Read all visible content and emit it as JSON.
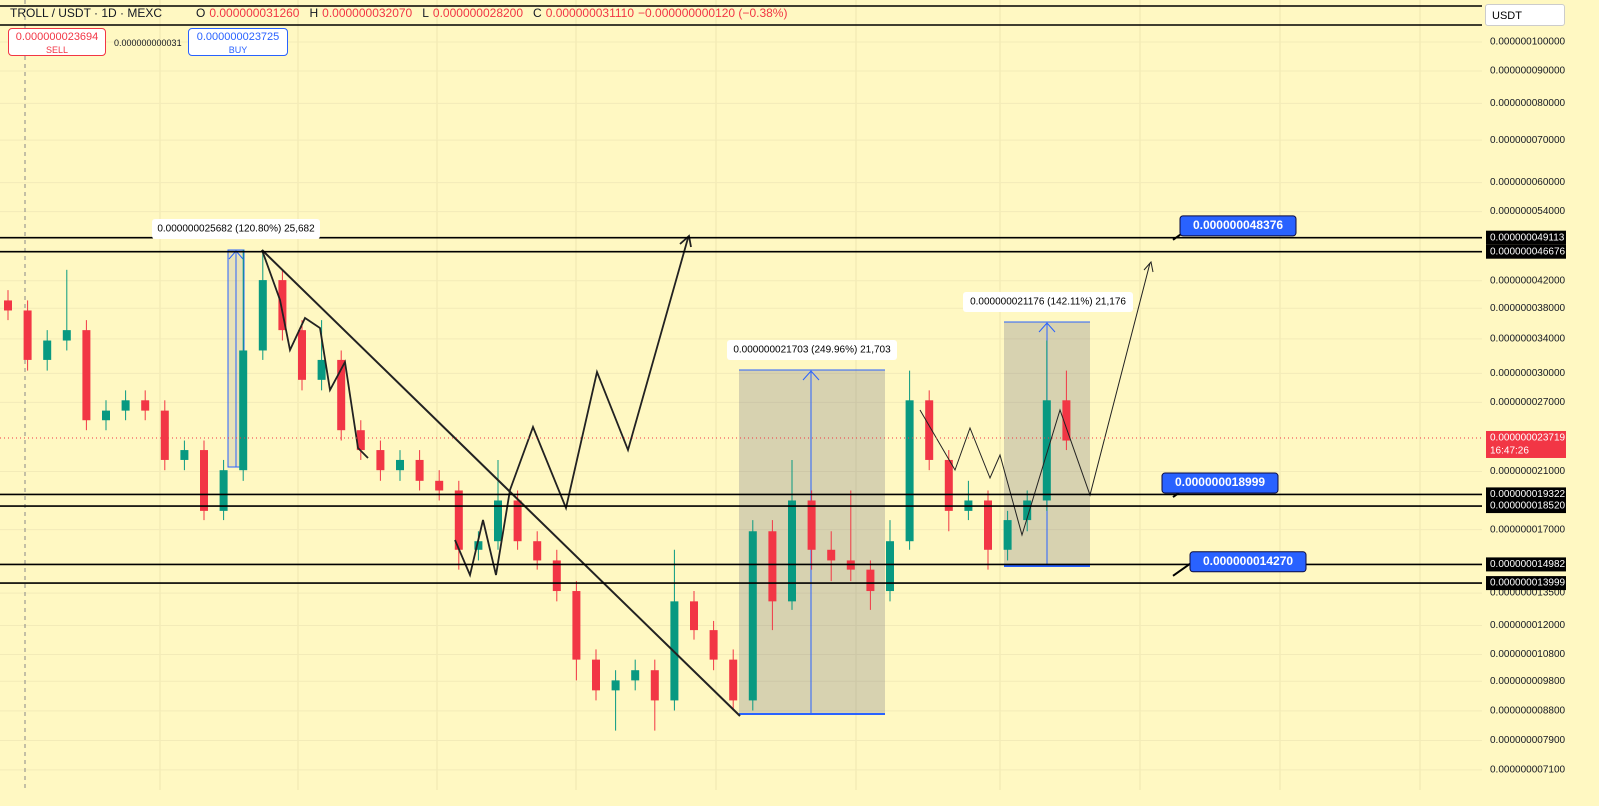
{
  "header": {
    "symbol": "TROLL / USDT · 1D · MEXC",
    "ohlc": [
      {
        "key": "O",
        "value": "0.000000031260"
      },
      {
        "key": "H",
        "value": "0.000000032070"
      },
      {
        "key": "L",
        "value": "0.000000028200"
      },
      {
        "key": "C",
        "value": "0.000000031110"
      }
    ],
    "change": "−0.000000000120 (−0.38%)"
  },
  "order": {
    "sell_price": "0.000000023694",
    "sell": "SELL",
    "spread": "0.000000000031",
    "buy_price": "0.000000023725",
    "buy": "BUY"
  },
  "currency": "USDT",
  "chart_data": {
    "type": "candlestick",
    "log_scale": true,
    "grid": true,
    "up_color": "#089981",
    "down_color": "#f23645",
    "ylim": [
      6.6e-09,
      1.165e-07
    ],
    "yticks": [
      {
        "value": 1e-07,
        "label": "0.000000100000"
      },
      {
        "value": 9e-08,
        "label": "0.000000090000"
      },
      {
        "value": 8e-08,
        "label": "0.000000080000"
      },
      {
        "value": 7e-08,
        "label": "0.000000070000"
      },
      {
        "value": 6e-08,
        "label": "0.000000060000"
      },
      {
        "value": 5.4e-08,
        "label": "0.000000054000"
      },
      {
        "value": 4.2e-08,
        "label": "0.000000042000"
      },
      {
        "value": 3.8e-08,
        "label": "0.000000038000"
      },
      {
        "value": 3.4e-08,
        "label": "0.000000034000"
      },
      {
        "value": 3e-08,
        "label": "0.000000030000"
      },
      {
        "value": 2.7e-08,
        "label": "0.000000027000"
      },
      {
        "value": 2.1e-08,
        "label": "0.000000021000"
      },
      {
        "value": 1.7e-08,
        "label": "0.000000017000"
      },
      {
        "value": 1.35e-08,
        "label": "0.000000013500"
      },
      {
        "value": 1.2e-08,
        "label": "0.000000012000"
      },
      {
        "value": 1.08e-08,
        "label": "0.000000010800"
      },
      {
        "value": 9.8e-09,
        "label": "0.000000009800"
      },
      {
        "value": 8.8e-09,
        "label": "0.000000008800"
      },
      {
        "value": 7.9e-09,
        "label": "0.000000007900"
      },
      {
        "value": 7.1e-09,
        "label": "0.000000007100"
      }
    ],
    "candles": [
      [
        3.91e-08,
        4.06e-08,
        3.64e-08,
        3.77e-08
      ],
      [
        3.77e-08,
        3.91e-08,
        3.03e-08,
        3.15e-08
      ],
      [
        3.15e-08,
        3.51e-08,
        3.03e-08,
        3.38e-08
      ],
      [
        3.38e-08,
        4.37e-08,
        3.26e-08,
        3.51e-08
      ],
      [
        3.51e-08,
        3.64e-08,
        2.44e-08,
        2.53e-08
      ],
      [
        2.53e-08,
        2.72e-08,
        2.44e-08,
        2.62e-08
      ],
      [
        2.62e-08,
        2.82e-08,
        2.53e-08,
        2.72e-08
      ],
      [
        2.72e-08,
        2.82e-08,
        2.53e-08,
        2.62e-08
      ],
      [
        2.62e-08,
        2.72e-08,
        2.11e-08,
        2.19e-08
      ],
      [
        2.19e-08,
        2.35e-08,
        2.11e-08,
        2.27e-08
      ],
      [
        2.27e-08,
        2.35e-08,
        1.76e-08,
        1.82e-08
      ],
      [
        1.82e-08,
        2.19e-08,
        1.76e-08,
        2.11e-08
      ],
      [
        2.11e-08,
        4.7e-08,
        2.03e-08,
        3.26e-08
      ],
      [
        3.26e-08,
        4.7e-08,
        3.15e-08,
        4.21e-08
      ],
      [
        4.21e-08,
        4.37e-08,
        3.38e-08,
        3.51e-08
      ],
      [
        3.51e-08,
        3.64e-08,
        2.82e-08,
        2.93e-08
      ],
      [
        2.93e-08,
        3.64e-08,
        2.82e-08,
        3.15e-08
      ],
      [
        3.15e-08,
        3.26e-08,
        2.35e-08,
        2.44e-08
      ],
      [
        2.44e-08,
        2.53e-08,
        2.19e-08,
        2.27e-08
      ],
      [
        2.27e-08,
        2.35e-08,
        2.03e-08,
        2.11e-08
      ],
      [
        2.11e-08,
        2.27e-08,
        2.03e-08,
        2.19e-08
      ],
      [
        2.19e-08,
        2.27e-08,
        1.96e-08,
        2.03e-08
      ],
      [
        2.03e-08,
        2.11e-08,
        1.89e-08,
        1.96e-08
      ],
      [
        1.96e-08,
        2.03e-08,
        1.47e-08,
        1.58e-08
      ],
      [
        1.58e-08,
        1.69e-08,
        1.52e-08,
        1.63e-08
      ],
      [
        1.63e-08,
        2.19e-08,
        1.58e-08,
        1.89e-08
      ],
      [
        1.89e-08,
        1.96e-08,
        1.58e-08,
        1.63e-08
      ],
      [
        1.63e-08,
        1.69e-08,
        1.47e-08,
        1.52e-08
      ],
      [
        1.52e-08,
        1.58e-08,
        1.31e-08,
        1.36e-08
      ],
      [
        1.36e-08,
        1.41e-08,
        9.83e-09,
        1.06e-08
      ],
      [
        1.06e-08,
        1.1e-08,
        9.14e-09,
        9.48e-09
      ],
      [
        9.48e-09,
        1.02e-08,
        8.19e-09,
        9.83e-09
      ],
      [
        9.83e-09,
        1.06e-08,
        9.48e-09,
        1.02e-08
      ],
      [
        1.02e-08,
        1.06e-08,
        8.19e-09,
        9.14e-09
      ],
      [
        9.14e-09,
        1.58e-08,
        8.81e-09,
        1.31e-08
      ],
      [
        1.31e-08,
        1.36e-08,
        1.14e-08,
        1.18e-08
      ],
      [
        1.18e-08,
        1.22e-08,
        1.02e-08,
        1.06e-08
      ],
      [
        1.06e-08,
        1.1e-08,
        8.81e-09,
        9.14e-09
      ],
      [
        9.14e-09,
        1.76e-08,
        8.81e-09,
        1.69e-08
      ],
      [
        1.69e-08,
        1.76e-08,
        1.18e-08,
        1.31e-08
      ],
      [
        1.31e-08,
        2.19e-08,
        1.27e-08,
        1.89e-08
      ],
      [
        1.89e-08,
        1.96e-08,
        1.47e-08,
        1.58e-08
      ],
      [
        1.58e-08,
        1.69e-08,
        1.41e-08,
        1.52e-08
      ],
      [
        1.52e-08,
        1.96e-08,
        1.41e-08,
        1.47e-08
      ],
      [
        1.47e-08,
        1.52e-08,
        1.27e-08,
        1.36e-08
      ],
      [
        1.36e-08,
        1.76e-08,
        1.31e-08,
        1.63e-08
      ],
      [
        1.63e-08,
        3.03e-08,
        1.58e-08,
        2.72e-08
      ],
      [
        2.72e-08,
        2.82e-08,
        2.11e-08,
        2.19e-08
      ],
      [
        2.19e-08,
        2.27e-08,
        1.69e-08,
        1.82e-08
      ],
      [
        1.82e-08,
        2.03e-08,
        1.76e-08,
        1.89e-08
      ],
      [
        1.89e-08,
        1.96e-08,
        1.47e-08,
        1.58e-08
      ],
      [
        1.58e-08,
        1.82e-08,
        1.52e-08,
        1.76e-08
      ],
      [
        1.76e-08,
        1.96e-08,
        1.69e-08,
        1.89e-08
      ],
      [
        1.89e-08,
        3.38e-08,
        1.82e-08,
        2.72e-08
      ],
      [
        2.72e-08,
        3.03e-08,
        2.27e-08,
        2.35e-08
      ]
    ],
    "price_lines": [
      {
        "value": 4.9113e-08,
        "label": "0.000000049113"
      },
      {
        "value": 4.6676e-08,
        "label": "0.000000046676"
      },
      {
        "value": 1.9322e-08,
        "label": "0.000000019322"
      },
      {
        "value": 1.852e-08,
        "label": "0.000000018520"
      },
      {
        "value": 1.4982e-08,
        "label": "0.000000014982"
      },
      {
        "value": 1.3999e-08,
        "label": "0.000000013999"
      }
    ],
    "last_price": {
      "value": 2.3719e-08,
      "label": "0.000000023719",
      "countdown": "16:47:26"
    },
    "callouts": [
      {
        "value": 4.8376e-08,
        "label": "0.000000048376"
      },
      {
        "value": 1.8999e-08,
        "label": "0.000000018999"
      },
      {
        "value": 1.427e-08,
        "label": "0.000000014270"
      }
    ],
    "annotations": [
      "0.000000025682 (120.80%) 25,682",
      "0.000000021703 (249.96%) 21,703",
      "0.000000021176 (142.11%) 21,176"
    ]
  }
}
